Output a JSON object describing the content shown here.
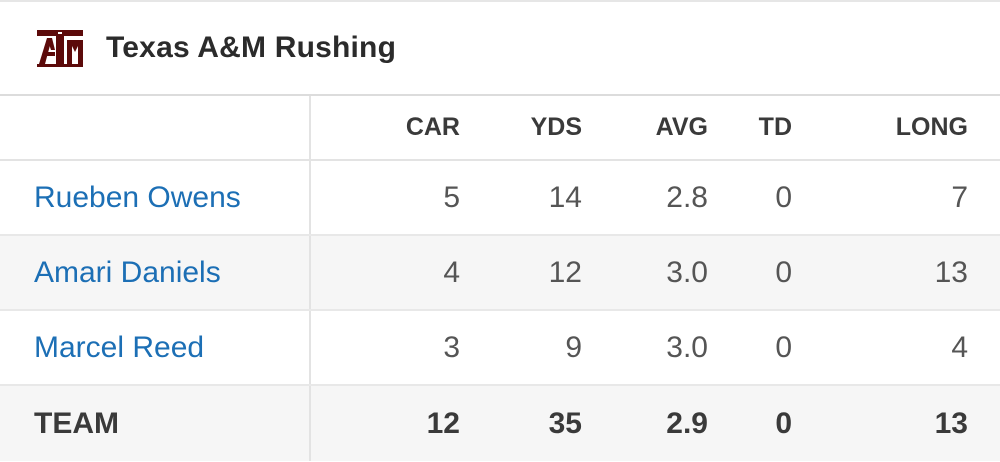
{
  "header": {
    "title": "Texas A&M Rushing",
    "logo_icon": "atm-logo-icon",
    "logo_color": "#5c0a0a"
  },
  "columns": [
    "CAR",
    "YDS",
    "AVG",
    "TD",
    "LONG"
  ],
  "rows": [
    {
      "name": "Rueben Owens",
      "car": "5",
      "yds": "14",
      "avg": "2.8",
      "td": "0",
      "long": "7"
    },
    {
      "name": "Amari Daniels",
      "car": "4",
      "yds": "12",
      "avg": "3.0",
      "td": "0",
      "long": "13"
    },
    {
      "name": "Marcel Reed",
      "car": "3",
      "yds": "9",
      "avg": "3.0",
      "td": "0",
      "long": "4"
    }
  ],
  "team": {
    "name": "TEAM",
    "car": "12",
    "yds": "35",
    "avg": "2.9",
    "td": "0",
    "long": "13"
  },
  "colors": {
    "link": "#1c6fb5",
    "alt_row": "#f6f6f6"
  }
}
